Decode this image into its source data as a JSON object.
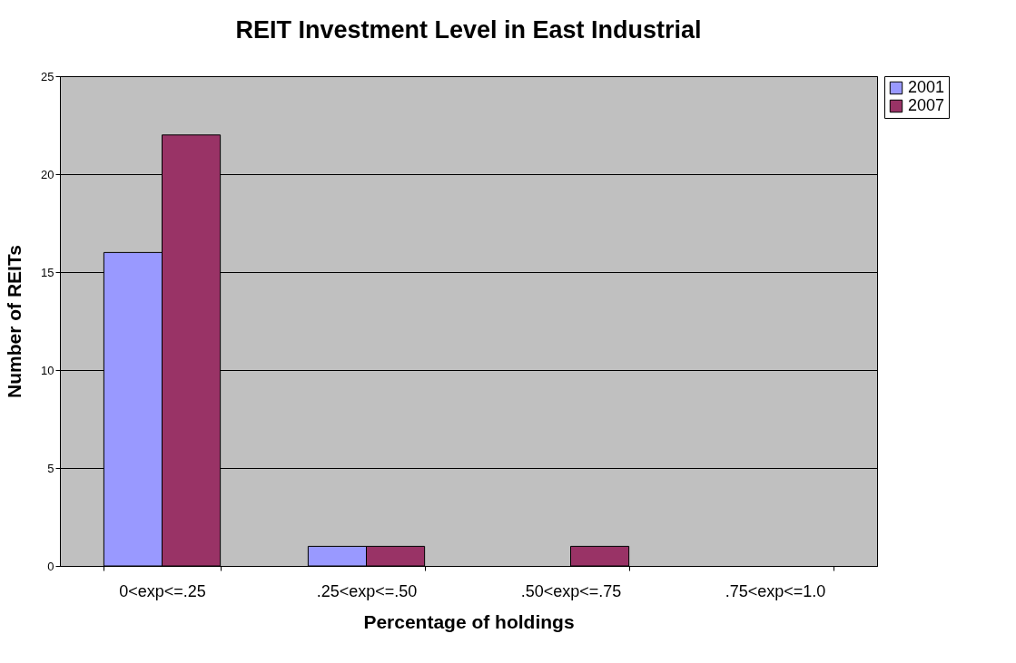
{
  "chart_data": {
    "type": "bar",
    "title": "REIT Investment Level in East Industrial",
    "xlabel": "Percentage of holdings",
    "ylabel": "Number of REITs",
    "categories": [
      "0<exp<=.25",
      ".25<exp<=.50",
      ".50<exp<=.75",
      ".75<exp<=1.0"
    ],
    "series": [
      {
        "name": "2001",
        "color": "#9999ff",
        "values": [
          16,
          1,
          null,
          null
        ]
      },
      {
        "name": "2007",
        "color": "#993366",
        "values": [
          22,
          1,
          1,
          null
        ]
      }
    ],
    "ylim": [
      0,
      25
    ],
    "yticks": [
      0,
      5,
      10,
      15,
      20,
      25
    ],
    "grid": "y",
    "legend": "right"
  }
}
